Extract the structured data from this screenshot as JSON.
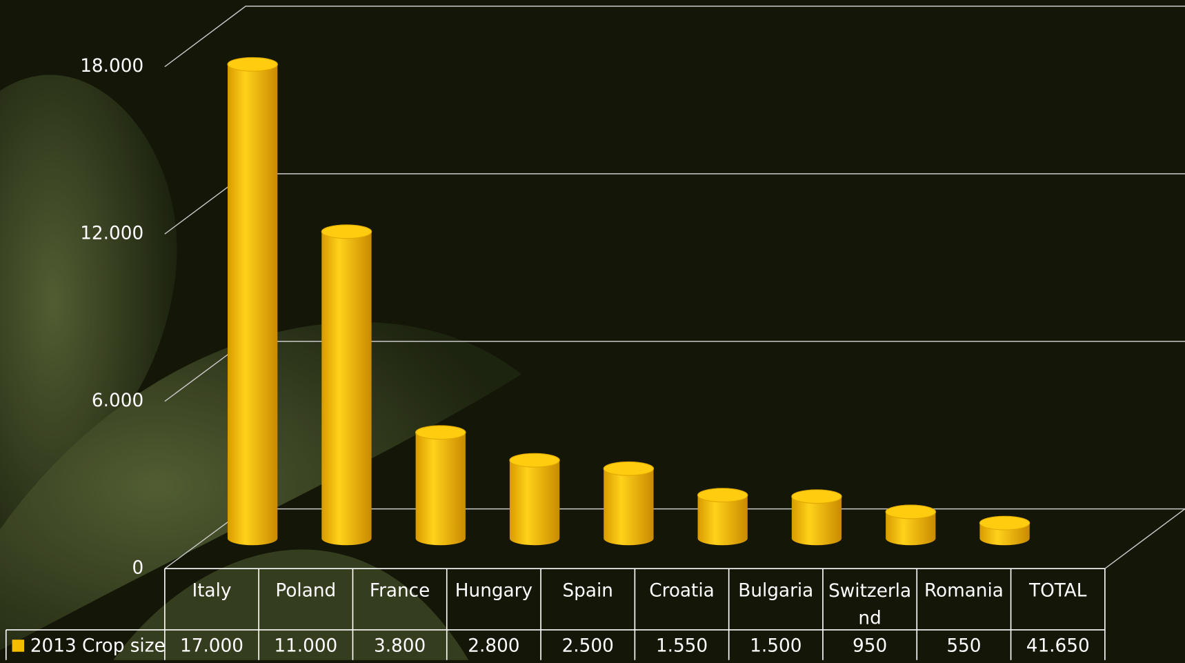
{
  "chart_data": {
    "type": "bar3d",
    "categories": [
      "Italy",
      "Poland",
      "France",
      "Hungary",
      "Spain",
      "Croatia",
      "Bulgaria",
      "Switzerland",
      "Romania",
      "TOTAL"
    ],
    "series": [
      {
        "name": "2013 Crop size",
        "color": "#f5bd00",
        "values": [
          17000,
          11000,
          3800,
          2800,
          2500,
          1550,
          1500,
          950,
          550,
          41650
        ],
        "value_labels": [
          "17.000",
          "11.000",
          "3.800",
          "2.800",
          "2.500",
          "1.550",
          "1.500",
          "950",
          "550",
          "41.650"
        ]
      }
    ],
    "ylim": [
      0,
      18000
    ],
    "yticks": [
      0,
      {
        "value": 6000,
        "label": "6.000"
      },
      {
        "value": 12000,
        "label": "12.000"
      },
      {
        "value": 18000,
        "label": "18.000"
      }
    ],
    "grid": true
  }
}
